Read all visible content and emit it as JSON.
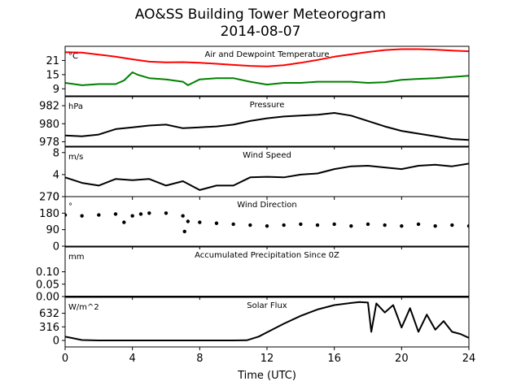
{
  "figure": {
    "title_line1": "AO&SS Building Tower Meteorogram",
    "title_line2": "2014-08-07",
    "xlabel": "Time (UTC)",
    "xticks": [
      "0",
      "4",
      "8",
      "12",
      "16",
      "20",
      "24"
    ]
  },
  "chart_data": [
    {
      "type": "line",
      "title": "Air and Dewpoint Temperature",
      "unit": "°C",
      "ylim": [
        6,
        27
      ],
      "yticks": [
        9,
        15,
        21
      ],
      "xlim": [
        0,
        24
      ],
      "series": [
        {
          "color": "#ff0000",
          "x": [
            0,
            1,
            2,
            3,
            4,
            5,
            6,
            7,
            8,
            9,
            10,
            11,
            12,
            13,
            14,
            15,
            16,
            17,
            18,
            19,
            20,
            21,
            22,
            23,
            24
          ],
          "values": [
            24.5,
            24.3,
            23.5,
            22.6,
            21.5,
            20.5,
            20.2,
            20.3,
            20.0,
            19.6,
            19.1,
            18.7,
            18.5,
            19.0,
            20.0,
            21.2,
            22.6,
            23.6,
            24.6,
            25.4,
            25.8,
            25.8,
            25.6,
            25.2,
            24.9
          ]
        },
        {
          "color": "#008000",
          "x": [
            0,
            1,
            2,
            3,
            3.5,
            4,
            4.3,
            5,
            6,
            7,
            7.3,
            8,
            9,
            10,
            11,
            12,
            13,
            14,
            15,
            16,
            17,
            18,
            19,
            20,
            21,
            22,
            23,
            24
          ],
          "values": [
            11.5,
            10.5,
            11.0,
            11.0,
            12.5,
            16.0,
            15.0,
            13.5,
            13.0,
            12.0,
            10.5,
            13.0,
            13.5,
            13.5,
            12.0,
            10.8,
            11.5,
            11.5,
            12.0,
            12.0,
            12.0,
            11.5,
            11.8,
            12.8,
            13.2,
            13.5,
            14.0,
            14.5
          ]
        }
      ]
    },
    {
      "type": "line",
      "title": "Pressure",
      "unit": "hPa",
      "ylim": [
        977.5,
        983
      ],
      "yticks": [
        978,
        980,
        982
      ],
      "xlim": [
        0,
        24
      ],
      "series": [
        {
          "color": "#000000",
          "x": [
            0,
            1,
            2,
            3,
            4,
            5,
            6,
            7,
            8,
            9,
            10,
            11,
            12,
            13,
            14,
            15,
            16,
            17,
            18,
            19,
            20,
            21,
            22,
            23,
            24
          ],
          "values": [
            978.7,
            978.6,
            978.8,
            979.4,
            979.6,
            979.8,
            979.9,
            979.5,
            979.6,
            979.7,
            979.9,
            980.3,
            980.6,
            980.8,
            980.9,
            981.0,
            981.2,
            980.9,
            980.3,
            979.7,
            979.2,
            978.9,
            978.6,
            978.3,
            978.2
          ]
        }
      ]
    },
    {
      "type": "line",
      "title": "Wind Speed",
      "unit": "m/s",
      "ylim": [
        0,
        9
      ],
      "yticks": [
        0,
        4,
        8
      ],
      "xlim": [
        0,
        24
      ],
      "series": [
        {
          "color": "#000000",
          "x": [
            0,
            1,
            2,
            3,
            4,
            5,
            6,
            7,
            8,
            9,
            10,
            11,
            12,
            13,
            14,
            15,
            16,
            17,
            18,
            19,
            20,
            21,
            22,
            23,
            24
          ],
          "values": [
            3.5,
            2.5,
            2.0,
            3.2,
            3.0,
            3.2,
            2.0,
            2.8,
            1.2,
            2.0,
            2.0,
            3.5,
            3.6,
            3.5,
            4.0,
            4.2,
            5.0,
            5.5,
            5.6,
            5.3,
            5.0,
            5.6,
            5.8,
            5.5,
            6.0
          ]
        }
      ]
    },
    {
      "type": "scatter",
      "title": "Wind Direction",
      "unit": "°",
      "ylim": [
        0,
        270
      ],
      "yticks": [
        0,
        90,
        180,
        270
      ],
      "xlim": [
        0,
        24
      ],
      "series": [
        {
          "color": "#000000",
          "x": [
            0,
            1,
            2,
            3,
            3.5,
            4,
            4.5,
            5,
            6,
            7,
            7.1,
            7.3,
            8,
            9,
            10,
            11,
            12,
            13,
            14,
            15,
            16,
            17,
            18,
            19,
            20,
            21,
            22,
            23,
            24
          ],
          "values": [
            170,
            165,
            170,
            175,
            130,
            165,
            175,
            180,
            180,
            165,
            80,
            135,
            130,
            125,
            120,
            115,
            110,
            115,
            120,
            115,
            120,
            110,
            120,
            115,
            110,
            120,
            110,
            115,
            110
          ]
        }
      ]
    },
    {
      "type": "line",
      "title": "Accumulated Precipitation Since 0Z",
      "unit": "mm",
      "ylim": [
        0,
        0.2
      ],
      "yticks": [
        0.0,
        0.05,
        0.1
      ],
      "ytick_labels": [
        "0.00",
        "0.05",
        "0.10"
      ],
      "xlim": [
        0,
        24
      ],
      "series": [
        {
          "color": "#000000",
          "x": [
            0,
            24
          ],
          "values": [
            0,
            0
          ]
        }
      ]
    },
    {
      "type": "line",
      "title": "Solar Flux",
      "unit": "W/m^2",
      "ylim": [
        -150,
        1000
      ],
      "yticks": [
        0,
        316,
        632
      ],
      "xlim": [
        0,
        24
      ],
      "series": [
        {
          "color": "#000000",
          "x": [
            0,
            0.5,
            1,
            2,
            3,
            4,
            5,
            6,
            7,
            8,
            9,
            10,
            10.8,
            11.5,
            12,
            13,
            14,
            15,
            16,
            17,
            17.5,
            18,
            18.2,
            18.5,
            19,
            19.5,
            20,
            20.5,
            21,
            21.5,
            22,
            22.5,
            23,
            23.5,
            24
          ],
          "values": [
            90,
            50,
            10,
            0,
            0,
            0,
            0,
            0,
            0,
            0,
            0,
            0,
            5,
            90,
            190,
            390,
            570,
            720,
            820,
            870,
            890,
            880,
            200,
            860,
            650,
            820,
            300,
            750,
            200,
            600,
            250,
            450,
            200,
            150,
            60
          ]
        }
      ]
    }
  ]
}
